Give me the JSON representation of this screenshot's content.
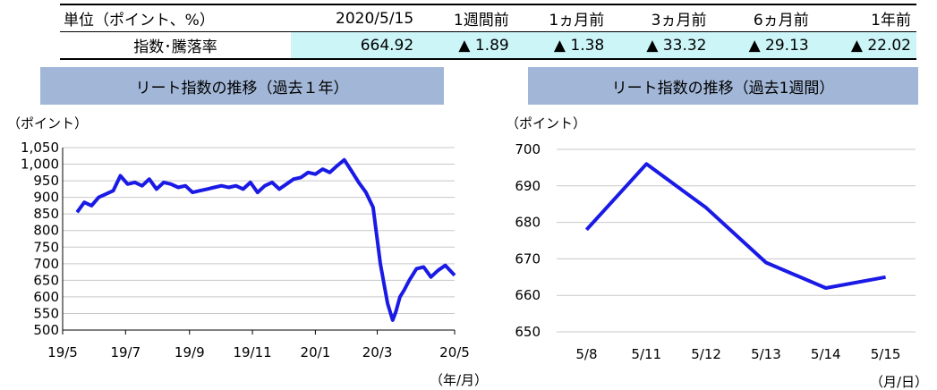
{
  "summary": {
    "headers": [
      "単位（ポイント、%）",
      "2020/5/15",
      "1週間前",
      "1ヵ月前",
      "3ヵ月前",
      "6ヵ月前",
      "1年前"
    ],
    "row_label": "指数･騰落率",
    "values": [
      "664.92",
      "▲ 1.89",
      "▲ 1.38",
      "▲ 33.32",
      "▲ 29.13",
      "▲ 22.02"
    ]
  },
  "line_color": "#1a1ae6",
  "chart_data": [
    {
      "type": "line",
      "title": "リート指数の推移（過去１年）",
      "ylabel": "（ポイント）",
      "xlabel": "（年/月）",
      "ylim": [
        500,
        1050
      ],
      "y_ticks": [
        "500",
        "550",
        "600",
        "650",
        "700",
        "750",
        "800",
        "850",
        "900",
        "950",
        "1,000",
        "1,050"
      ],
      "x_ticks": [
        "19/5",
        "19/7",
        "19/9",
        "19/11",
        "20/1",
        "20/3",
        "20/5"
      ],
      "grid": true,
      "series": [
        {
          "x": [
            "2019-05-15",
            "2019-05-22",
            "2019-05-29",
            "2019-06-05",
            "2019-06-12",
            "2019-06-19",
            "2019-06-26",
            "2019-07-03",
            "2019-07-10",
            "2019-07-17",
            "2019-07-24",
            "2019-07-31",
            "2019-08-07",
            "2019-08-14",
            "2019-08-21",
            "2019-08-28",
            "2019-09-04",
            "2019-09-11",
            "2019-09-18",
            "2019-09-25",
            "2019-10-02",
            "2019-10-09",
            "2019-10-16",
            "2019-10-23",
            "2019-10-30",
            "2019-11-06",
            "2019-11-13",
            "2019-11-20",
            "2019-11-27",
            "2019-12-04",
            "2019-12-11",
            "2019-12-18",
            "2019-12-25",
            "2020-01-01",
            "2020-01-08",
            "2020-01-15",
            "2020-01-22",
            "2020-01-29",
            "2020-02-05",
            "2020-02-12",
            "2020-02-19",
            "2020-02-26",
            "2020-03-04",
            "2020-03-11",
            "2020-03-16",
            "2020-03-19",
            "2020-03-23",
            "2020-03-27",
            "2020-04-01",
            "2020-04-08",
            "2020-04-15",
            "2020-04-22",
            "2020-04-29",
            "2020-05-06",
            "2020-05-15"
          ],
          "values": [
            855,
            885,
            875,
            900,
            910,
            920,
            965,
            940,
            945,
            935,
            955,
            925,
            945,
            940,
            930,
            935,
            915,
            920,
            925,
            930,
            935,
            930,
            935,
            925,
            945,
            915,
            935,
            945,
            925,
            940,
            955,
            960,
            975,
            970,
            985,
            975,
            995,
            1013,
            980,
            945,
            915,
            870,
            700,
            580,
            530,
            555,
            600,
            620,
            650,
            685,
            690,
            660,
            680,
            695,
            665
          ]
        }
      ]
    },
    {
      "type": "line",
      "title": "リート指数の推移（過去1週間）",
      "ylabel": "（ポイント）",
      "xlabel": "（月/日）",
      "ylim": [
        650,
        700
      ],
      "y_ticks": [
        "650",
        "660",
        "670",
        "680",
        "690",
        "700"
      ],
      "categories": [
        "5/8",
        "5/11",
        "5/12",
        "5/13",
        "5/14",
        "5/15"
      ],
      "grid": true,
      "series": [
        {
          "values": [
            678,
            696,
            684,
            669,
            662,
            665
          ]
        }
      ]
    }
  ]
}
